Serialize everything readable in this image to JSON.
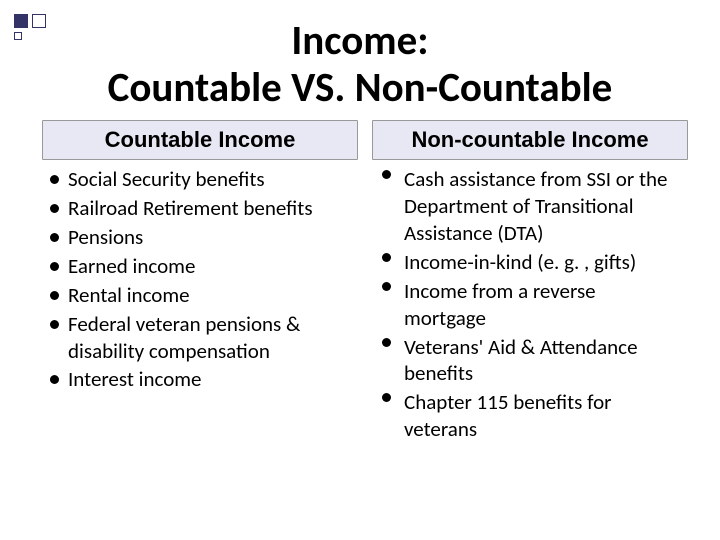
{
  "title_line1": "Income:",
  "title_line2": "Countable VS. Non-Countable",
  "left": {
    "header": "Countable Income",
    "items": [
      "Social Security benefits",
      "Railroad Retirement benefits",
      "Pensions",
      "Earned income",
      "Rental income",
      "Federal veteran pensions & disability compensation",
      "Interest income"
    ]
  },
  "right": {
    "header": "Non-countable Income",
    "items": [
      "Cash assistance from SSI or the Department of Transitional Assistance (DTA)",
      "Income-in-kind (e. g. , gifts)",
      "Income from a reverse mortgage",
      "Veterans' Aid & Attendance benefits",
      "Chapter 115 benefits for veterans"
    ]
  },
  "colors": {
    "header_bg": "#e8e8f4",
    "accent": "#333366",
    "text": "#000000",
    "background": "#ffffff"
  },
  "fonts": {
    "title_size_pt": 41,
    "header_size_pt": 22,
    "body_size_pt": 21
  }
}
